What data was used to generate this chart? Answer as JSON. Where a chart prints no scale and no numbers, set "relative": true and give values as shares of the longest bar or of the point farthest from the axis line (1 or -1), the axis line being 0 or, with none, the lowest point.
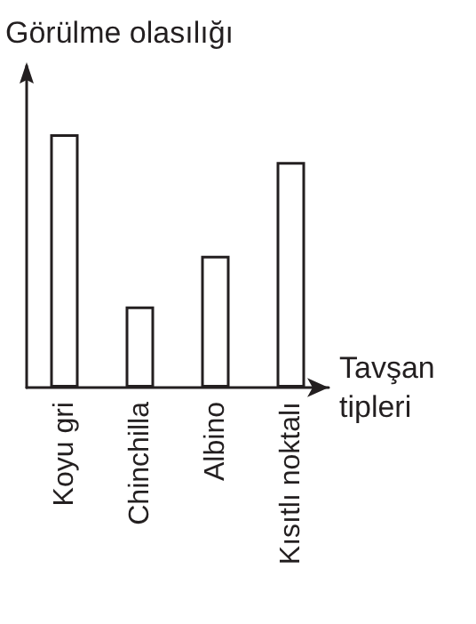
{
  "chart_data": {
    "type": "bar",
    "relative": true,
    "xlabel": "Tavşan\ntipleri",
    "ylabel": "Görülme olasılığı",
    "categories": [
      "Koyu gri",
      "Chinchilla",
      "Albino",
      "Kısıtlı noktalı"
    ],
    "values": [
      1,
      0.32,
      0.52,
      0.89
    ],
    "color": "#ffffff",
    "grid": false
  }
}
